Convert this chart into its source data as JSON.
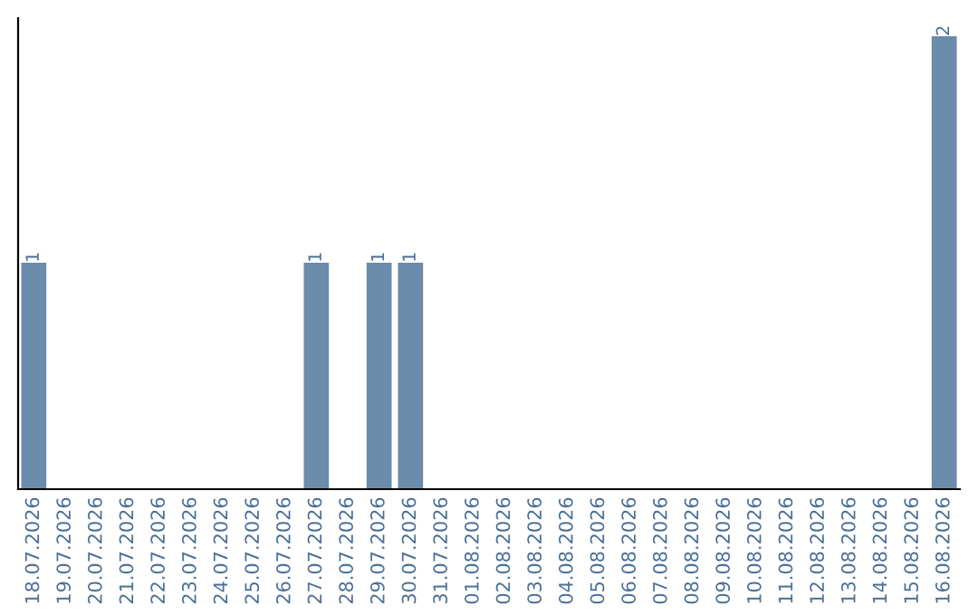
{
  "chart_data": {
    "type": "bar",
    "categories": [
      "18.07.2026",
      "19.07.2026",
      "20.07.2026",
      "21.07.2026",
      "22.07.2026",
      "23.07.2026",
      "24.07.2026",
      "25.07.2026",
      "26.07.2026",
      "27.07.2026",
      "28.07.2026",
      "29.07.2026",
      "30.07.2026",
      "31.07.2026",
      "01.08.2026",
      "02.08.2026",
      "03.08.2026",
      "04.08.2026",
      "05.08.2026",
      "06.08.2026",
      "07.08.2026",
      "08.08.2026",
      "09.08.2026",
      "10.08.2026",
      "11.08.2026",
      "12.08.2026",
      "13.08.2026",
      "14.08.2026",
      "15.08.2026",
      "16.08.2026"
    ],
    "values": [
      1,
      0,
      0,
      0,
      0,
      0,
      0,
      0,
      0,
      1,
      0,
      1,
      1,
      0,
      0,
      0,
      0,
      0,
      0,
      0,
      0,
      0,
      0,
      0,
      0,
      0,
      0,
      0,
      0,
      2
    ],
    "value_labels": [
      "1",
      null,
      null,
      null,
      null,
      null,
      null,
      null,
      null,
      "1",
      null,
      "1",
      "1",
      null,
      null,
      null,
      null,
      null,
      null,
      null,
      null,
      null,
      null,
      null,
      null,
      null,
      null,
      null,
      null,
      "2"
    ],
    "color": "#6b8cab",
    "grid": false,
    "legend": false
  }
}
